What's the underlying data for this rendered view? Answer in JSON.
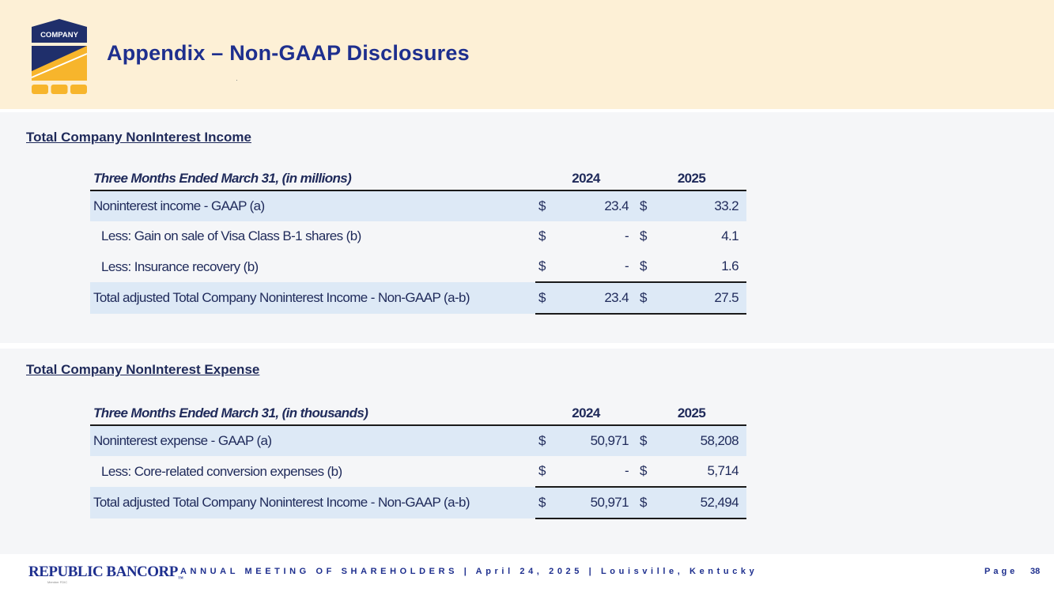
{
  "header": {
    "logo_text": "COMPANY",
    "title": "Appendix – Non-GAAP Disclosures"
  },
  "income": {
    "heading": "Total Company NonInterest Income",
    "table": {
      "caption": "Three Months Ended March 31, (in millions)",
      "years": [
        "2024",
        "2025"
      ],
      "rows": [
        {
          "label": "Noninterest income - GAAP (a)",
          "d1": "$",
          "v1": "23.4",
          "d2": "$",
          "v2": "33.2"
        },
        {
          "label": "Less:  Gain on sale of Visa Class B-1 shares (b)",
          "d1": "$",
          "v1": "-",
          "d2": "$",
          "v2": "4.1"
        },
        {
          "label": "Less:  Insurance recovery (b)",
          "d1": "$",
          "v1": "-",
          "d2": "$",
          "v2": "1.6"
        },
        {
          "label": "Total adjusted Total Company Noninterest Income - Non-GAAP (a-b)",
          "d1": "$",
          "v1": "23.4",
          "d2": "$",
          "v2": "27.5"
        }
      ]
    }
  },
  "expense": {
    "heading": "Total Company NonInterest Expense",
    "table": {
      "caption": "Three Months Ended March 31, (in thousands)",
      "years": [
        "2024",
        "2025"
      ],
      "rows": [
        {
          "label": "Noninterest expense - GAAP (a)",
          "d1": "$",
          "v1": "50,971",
          "d2": "$",
          "v2": "58,208"
        },
        {
          "label": "Less:  Core-related conversion expenses (b)",
          "d1": "$",
          "v1": "-",
          "d2": "$",
          "v2": "5,714"
        },
        {
          "label": "Total adjusted Total Company Noninterest Income - Non-GAAP (a-b)",
          "d1": "$",
          "v1": "50,971",
          "d2": "$",
          "v2": "52,494"
        }
      ]
    }
  },
  "footer": {
    "brand": "REPUBLIC BANCORP",
    "tm": "™",
    "brand_sub": "Member FDIC",
    "event": "ANNUAL MEETING OF SHAREHOLDERS  |  April 24, 2025  |  Louisville, Kentucky",
    "page_label": "Page",
    "page_number": "38"
  },
  "colors": {
    "header_band": "#fdf0d6",
    "title": "#1e2f8e",
    "logo_navy": "#1f2f6b",
    "logo_gold": "#f7b52c",
    "row_shade": "#dde9f6"
  }
}
